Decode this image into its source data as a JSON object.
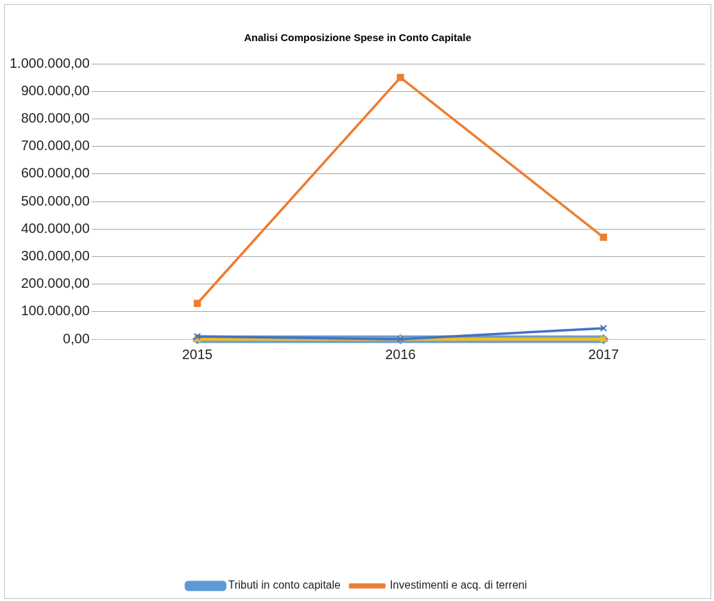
{
  "chart_data": {
    "type": "line",
    "title": "Analisi Composizione Spese in Conto Capitale",
    "categories": [
      "2015",
      "2016",
      "2017"
    ],
    "series": [
      {
        "name": "Tributi in conto capitale",
        "color": "#5b9bd5",
        "marker": "diamond",
        "values": [
          0,
          0,
          0
        ]
      },
      {
        "name": "Investimenti e acq. di terreni",
        "color": "#ed7d31",
        "marker": "square",
        "values": [
          130000,
          950000,
          370000
        ]
      },
      {
        "color": "#a5a5a5",
        "marker": "triangle",
        "values": [
          0,
          0,
          0
        ]
      },
      {
        "color": "#ffc000",
        "marker": "cross",
        "values": [
          0,
          0,
          0
        ]
      },
      {
        "color": "#4472c4",
        "marker": "cross",
        "values": [
          10000,
          0,
          40000
        ]
      }
    ],
    "ylim": [
      0,
      1000000
    ],
    "yticks": [
      {
        "value": 0,
        "label": "0,00"
      },
      {
        "value": 100000,
        "label": "100.000,00"
      },
      {
        "value": 200000,
        "label": "200.000,00"
      },
      {
        "value": 300000,
        "label": "300.000,00"
      },
      {
        "value": 400000,
        "label": "400.000,00"
      },
      {
        "value": 500000,
        "label": "500.000,00"
      },
      {
        "value": 600000,
        "label": "600.000,00"
      },
      {
        "value": 700000,
        "label": "700.000,00"
      },
      {
        "value": 800000,
        "label": "800.000,00"
      },
      {
        "value": 900000,
        "label": "900.000,00"
      },
      {
        "value": 1000000,
        "label": "1.000.000,00"
      }
    ],
    "grid": "y",
    "legend": "bottom",
    "line_style": "solid"
  }
}
